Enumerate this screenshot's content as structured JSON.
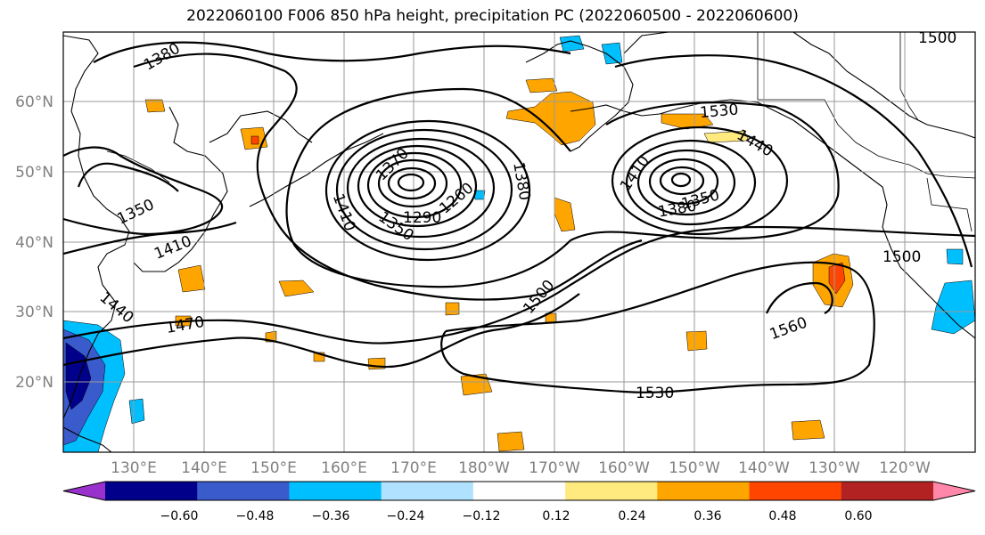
{
  "title": "2022060100 F006 850 hPa height, precipitation PC (2022060500 - 2022060600)",
  "map": {
    "longitude_labels": [
      "130°E",
      "140°E",
      "150°E",
      "160°E",
      "170°E",
      "180°W",
      "170°W",
      "160°W",
      "150°W",
      "140°W",
      "130°W",
      "120°W"
    ],
    "latitude_labels": [
      "60°N",
      "50°N",
      "40°N",
      "30°N",
      "20°N"
    ]
  },
  "contour_labels": [
    "1380",
    "1350",
    "1410",
    "1440",
    "1470",
    "1370",
    "1260",
    "1290",
    "1350",
    "1410",
    "1380",
    "1500",
    "1410",
    "1380",
    "1350",
    "1530",
    "1440",
    "1500",
    "1560",
    "1530",
    "1500"
  ],
  "colorbar": {
    "tick_labels": [
      "−0.60",
      "−0.48",
      "−0.36",
      "−0.24",
      "−0.12",
      "0.12",
      "0.24",
      "0.36",
      "0.48",
      "0.60"
    ],
    "colors": [
      "#9932cc",
      "#00008b",
      "#3a5bcc",
      "#00bfff",
      "#b0e2ff",
      "#ffffff",
      "#ffea80",
      "#ffa500",
      "#ff4500",
      "#b22222",
      "#ff88aa"
    ]
  }
}
